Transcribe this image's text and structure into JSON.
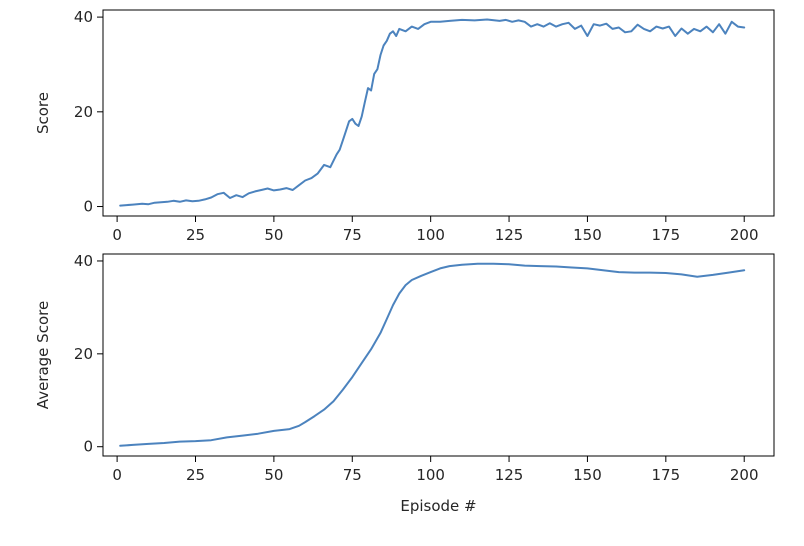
{
  "chart_data": [
    {
      "type": "line",
      "title": "",
      "xlabel": "",
      "ylabel": "Score",
      "xlim": [
        -4.5,
        209.5
      ],
      "ylim": [
        -2,
        41.5
      ],
      "xticks": [
        0,
        25,
        50,
        75,
        100,
        125,
        150,
        175,
        200
      ],
      "yticks": [
        0,
        20,
        40
      ],
      "grid": false,
      "line_color": "#4c83be",
      "series": [
        {
          "name": "",
          "x": [
            1,
            3,
            5,
            8,
            10,
            12,
            14,
            16,
            18,
            20,
            22,
            24,
            26,
            28,
            30,
            32,
            34,
            36,
            38,
            40,
            42,
            44,
            46,
            48,
            50,
            52,
            54,
            56,
            58,
            60,
            62,
            64,
            66,
            68,
            70,
            71,
            72,
            73,
            74,
            75,
            76,
            77,
            78,
            79,
            80,
            81,
            82,
            83,
            84,
            85,
            86,
            87,
            88,
            89,
            90,
            92,
            94,
            96,
            98,
            100,
            103,
            106,
            110,
            114,
            118,
            122,
            124,
            126,
            128,
            130,
            132,
            134,
            136,
            138,
            140,
            142,
            144,
            146,
            148,
            150,
            152,
            154,
            156,
            158,
            160,
            162,
            164,
            166,
            168,
            170,
            172,
            174,
            176,
            178,
            180,
            182,
            184,
            186,
            188,
            190,
            192,
            194,
            196,
            198,
            200
          ],
          "values": [
            0.2,
            0.3,
            0.4,
            0.6,
            0.5,
            0.8,
            0.9,
            1.0,
            1.2,
            1.0,
            1.3,
            1.1,
            1.2,
            1.5,
            1.9,
            2.6,
            2.9,
            1.8,
            2.4,
            2.0,
            2.8,
            3.2,
            3.5,
            3.8,
            3.4,
            3.6,
            3.9,
            3.5,
            4.5,
            5.5,
            6.0,
            7.0,
            8.8,
            8.3,
            11.0,
            12.0,
            14.0,
            16.0,
            18.0,
            18.5,
            17.5,
            17.0,
            19.0,
            22.0,
            25.0,
            24.5,
            28.0,
            29.0,
            32.0,
            34.0,
            35.0,
            36.5,
            37.0,
            36.0,
            37.5,
            37.0,
            38.0,
            37.5,
            38.5,
            39.0,
            39.0,
            39.2,
            39.4,
            39.3,
            39.5,
            39.2,
            39.4,
            39.0,
            39.3,
            39.0,
            38.0,
            38.5,
            38.0,
            38.7,
            38.0,
            38.5,
            38.8,
            37.5,
            38.2,
            36.0,
            38.5,
            38.2,
            38.6,
            37.5,
            37.8,
            36.8,
            37.0,
            38.4,
            37.5,
            37.0,
            38.0,
            37.6,
            38.0,
            36.0,
            37.6,
            36.5,
            37.5,
            37.0,
            38.0,
            36.8,
            38.5,
            36.5,
            39.0,
            38.0,
            37.8
          ]
        }
      ]
    },
    {
      "type": "line",
      "title": "",
      "xlabel": "Episode #",
      "ylabel": "Average Score",
      "xlim": [
        -4.5,
        209.5
      ],
      "ylim": [
        -2,
        41.5
      ],
      "xticks": [
        0,
        25,
        50,
        75,
        100,
        125,
        150,
        175,
        200
      ],
      "yticks": [
        0,
        20,
        40
      ],
      "grid": false,
      "line_color": "#4c83be",
      "series": [
        {
          "name": "",
          "x": [
            1,
            5,
            10,
            15,
            20,
            25,
            30,
            35,
            40,
            45,
            50,
            55,
            58,
            60,
            63,
            66,
            69,
            72,
            75,
            78,
            81,
            84,
            86,
            88,
            90,
            92,
            94,
            97,
            100,
            103,
            106,
            110,
            115,
            120,
            125,
            130,
            135,
            140,
            145,
            150,
            155,
            160,
            165,
            170,
            175,
            180,
            185,
            190,
            195,
            200
          ],
          "values": [
            0.2,
            0.4,
            0.6,
            0.8,
            1.1,
            1.2,
            1.4,
            2.0,
            2.4,
            2.8,
            3.4,
            3.8,
            4.5,
            5.3,
            6.6,
            8.0,
            9.8,
            12.3,
            15.0,
            18.0,
            21.0,
            24.5,
            27.5,
            30.5,
            33.0,
            34.8,
            35.9,
            36.8,
            37.6,
            38.4,
            38.9,
            39.2,
            39.4,
            39.4,
            39.3,
            39.0,
            38.9,
            38.8,
            38.6,
            38.4,
            38.0,
            37.6,
            37.5,
            37.5,
            37.4,
            37.1,
            36.6,
            37.0,
            37.5,
            38.0
          ]
        }
      ]
    }
  ]
}
